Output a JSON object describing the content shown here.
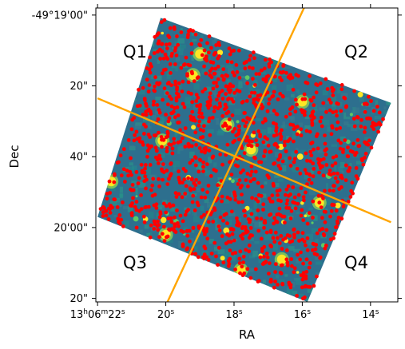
{
  "chart_data": {
    "type": "scatter",
    "title": "",
    "xlabel": "RA",
    "ylabel": "Dec",
    "x_ticks": [
      {
        "label": "13h06m22s",
        "parts": [
          "13",
          "h",
          "06",
          "m",
          "22",
          "s"
        ],
        "value_s": 22
      },
      {
        "label": "20s",
        "parts": [
          "20",
          "s"
        ],
        "value_s": 20
      },
      {
        "label": "18s",
        "parts": [
          "18",
          "s"
        ],
        "value_s": 18
      },
      {
        "label": "16s",
        "parts": [
          "16",
          "s"
        ],
        "value_s": 16
      },
      {
        "label": "14s",
        "parts": [
          "14",
          "s"
        ],
        "value_s": 14
      }
    ],
    "y_ticks": [
      {
        "label": "-49°19'00\"",
        "value_arcsec": 0
      },
      {
        "label": "20\"",
        "value_arcsec": 20
      },
      {
        "label": "40\"",
        "value_arcsec": 40
      },
      {
        "label": "20'00\"",
        "value_arcsec": 60
      },
      {
        "label": "20\"",
        "value_arcsec": 80
      }
    ],
    "xlim_s": [
      22.05,
      13.2
    ],
    "ylim_arcsec": [
      -2,
      81
    ],
    "quadrant_labels": [
      "Q1",
      "Q2",
      "Q3",
      "Q4"
    ],
    "dividing_lines": {
      "color": "#ffa500",
      "line_a": [
        [
          22.0,
          23.5
        ],
        [
          13.4,
          58.5
        ]
      ],
      "line_b": [
        [
          15.95,
          -2.0
        ],
        [
          19.95,
          81.0
        ]
      ]
    },
    "image_footprint": {
      "corners_arcsec": [
        [
          20.15,
          0.8
        ],
        [
          13.4,
          24.8
        ],
        [
          15.85,
          81.0
        ],
        [
          22.0,
          57.0
        ]
      ],
      "colors": [
        "#2d6f8e",
        "#238a8d",
        "#2a9a87",
        "#3a7c8c",
        "#1f8a86"
      ]
    },
    "bright_sources": [
      [
        17.5,
        38
      ],
      [
        20.1,
        35.5
      ],
      [
        15.5,
        53
      ],
      [
        20.0,
        62
      ],
      [
        16.6,
        69
      ],
      [
        18.2,
        31
      ],
      [
        21.6,
        47
      ],
      [
        14.3,
        60
      ],
      [
        17.8,
        72
      ],
      [
        19.2,
        17
      ],
      [
        16.0,
        24.5
      ],
      [
        19.0,
        11
      ],
      [
        15.9,
        12.5
      ]
    ],
    "point_color": "#ff0000",
    "n_points": 1300
  }
}
